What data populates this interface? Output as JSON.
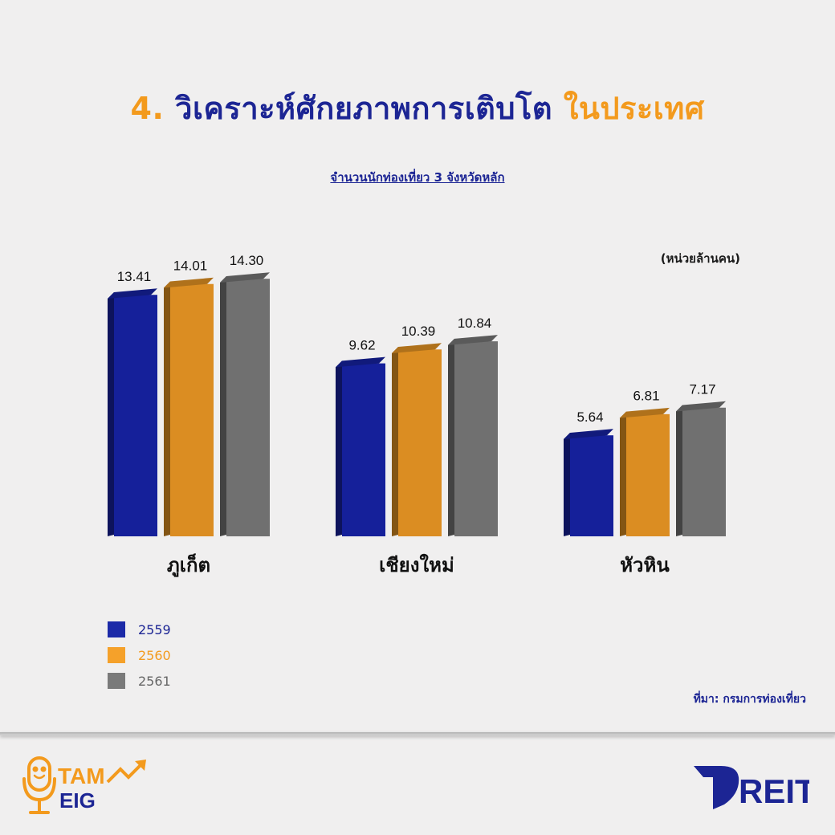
{
  "title": {
    "number": "4.",
    "main": "วิเคราะห์ศักยภาพการเติบโต",
    "accent": "ในประเทศ"
  },
  "subtitle": "จำนวนนักท่องเที่ยว 3 จังหวัดหลัก",
  "unit_label": "(หน่วยล้านคน)",
  "source": "ที่มา: กรมการท่องเที่ยว",
  "colors": {
    "series_2559": "#15209a",
    "series_2560": "#db8d22",
    "series_2561": "#707070",
    "title_blue": "#1c2594",
    "title_orange": "#f39a1d"
  },
  "logos": {
    "left_top": "TAM",
    "left_bottom": "EIG",
    "right": "REIT"
  },
  "chart_data": {
    "type": "bar",
    "categories": [
      "ภูเก็ต",
      "เชียงใหม่",
      "หัวหิน"
    ],
    "series": [
      {
        "name": "2559",
        "color": "#15209a",
        "values": [
          13.41,
          9.62,
          5.64
        ]
      },
      {
        "name": "2560",
        "color": "#db8d22",
        "values": [
          14.01,
          10.39,
          6.81
        ]
      },
      {
        "name": "2561",
        "color": "#707070",
        "values": [
          14.3,
          10.84,
          7.17
        ]
      }
    ],
    "title": "จำนวนนักท่องเที่ยว 3 จังหวัดหลัก",
    "xlabel": "",
    "ylabel": "",
    "ylim": [
      0,
      14.3
    ],
    "grid": false,
    "legend": "bottom-left"
  }
}
